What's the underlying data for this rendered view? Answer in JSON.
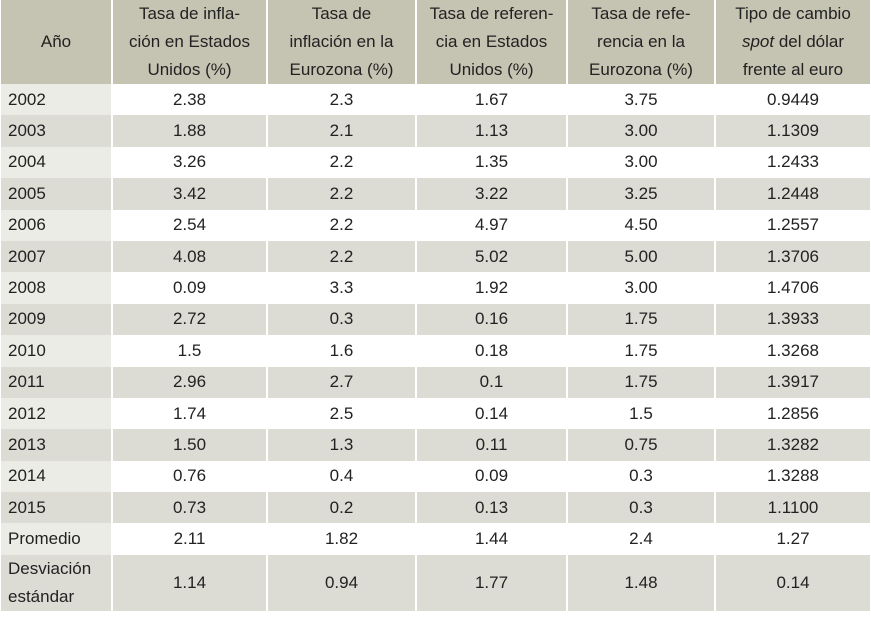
{
  "headers": {
    "year": [
      "Año"
    ],
    "us_inflation": [
      "Tasa de infla-",
      "ción en Estados",
      "Unidos (%)"
    ],
    "ez_inflation": [
      "Tasa de",
      "inflación en la",
      "Eurozona (%)"
    ],
    "us_rate": [
      "Tasa de referen-",
      "cia en Estados",
      "Unidos (%)"
    ],
    "ez_rate": [
      "Tasa de refe-",
      "rencia en la",
      "Eurozona (%)"
    ],
    "fx_pre": "Tipo de cambio",
    "fx_italic": "spot",
    "fx_post": " del dólar",
    "fx_line3": "frente al euro"
  },
  "rows": [
    [
      "2002",
      "2.38",
      "2.3",
      "1.67",
      "3.75",
      "0.9449"
    ],
    [
      "2003",
      "1.88",
      "2.1",
      "1.13",
      "3.00",
      "1.1309"
    ],
    [
      "2004",
      "3.26",
      "2.2",
      "1.35",
      "3.00",
      "1.2433"
    ],
    [
      "2005",
      "3.42",
      "2.2",
      "3.22",
      "3.25",
      "1.2448"
    ],
    [
      "2006",
      "2.54",
      "2.2",
      "4.97",
      "4.50",
      "1.2557"
    ],
    [
      "2007",
      "4.08",
      "2.2",
      "5.02",
      "5.00",
      "1.3706"
    ],
    [
      "2008",
      "0.09",
      "3.3",
      "1.92",
      "3.00",
      "1.4706"
    ],
    [
      "2009",
      "2.72",
      "0.3",
      "0.16",
      "1.75",
      "1.3933"
    ],
    [
      "2010",
      "1.5",
      "1.6",
      "0.18",
      "1.75",
      "1.3268"
    ],
    [
      "2011",
      "2.96",
      "2.7",
      "0.1",
      "1.75",
      "1.3917"
    ],
    [
      "2012",
      "1.74",
      "2.5",
      "0.14",
      "1.5",
      "1.2856"
    ],
    [
      "2013",
      "1.50",
      "1.3",
      "0.11",
      "0.75",
      "1.3282"
    ],
    [
      "2014",
      "0.76",
      "0.4",
      "0.09",
      "0.3",
      "1.3288"
    ],
    [
      "2015",
      "0.73",
      "0.2",
      "0.13",
      "0.3",
      "1.1100"
    ],
    [
      "Promedio",
      "2.11",
      "1.82",
      "1.44",
      "2.4",
      "1.27"
    ]
  ],
  "std_row": {
    "label": [
      "Desviación",
      "estándar"
    ],
    "values": [
      "1.14",
      "0.94",
      "1.77",
      "1.48",
      "0.14"
    ]
  }
}
